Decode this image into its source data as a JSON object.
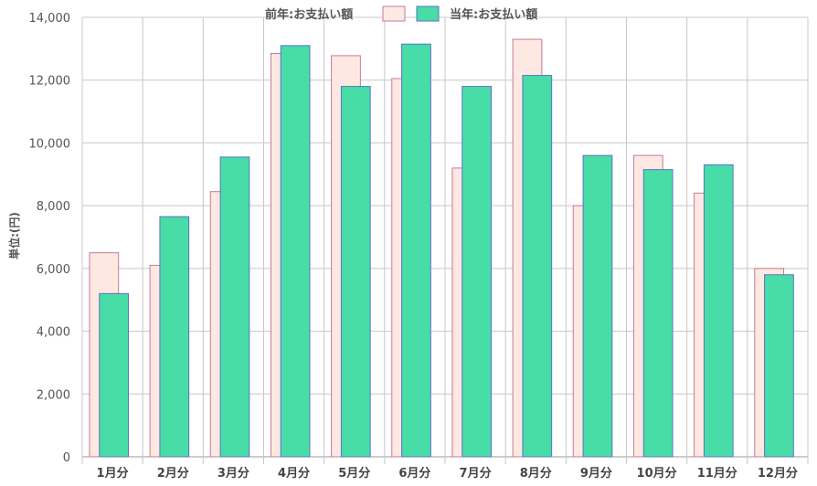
{
  "chart_data": {
    "type": "bar",
    "categories": [
      "1月分",
      "2月分",
      "3月分",
      "4月分",
      "5月分",
      "6月分",
      "7月分",
      "8月分",
      "9月分",
      "10月分",
      "11月分",
      "12月分"
    ],
    "series": [
      {
        "name": "前年:お支払い額",
        "color": "#fde8e2",
        "border": "#c47a9a",
        "values": [
          6500,
          6100,
          8450,
          12850,
          12780,
          12050,
          9200,
          13300,
          8000,
          9600,
          8400,
          6000
        ]
      },
      {
        "name": "当年:お支払い額",
        "color": "#48dca6",
        "border": "#5a73c8",
        "values": [
          5200,
          7650,
          9550,
          13100,
          11800,
          13150,
          11800,
          12150,
          9600,
          9150,
          9300,
          5800
        ]
      }
    ],
    "ylabel": "単位:(円)",
    "ylim": [
      0,
      14000
    ],
    "yticks": [
      "0",
      "2,000",
      "4,000",
      "6,000",
      "8,000",
      "10,000",
      "12,000",
      "14,000"
    ],
    "grid": true,
    "legend_position": "top-center"
  }
}
